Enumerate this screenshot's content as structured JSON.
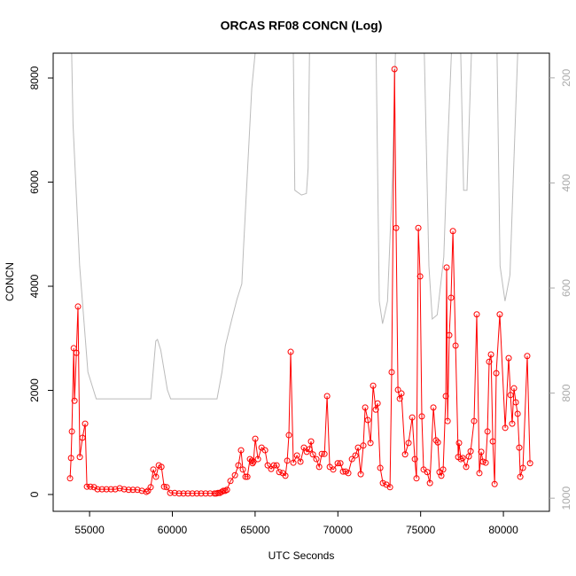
{
  "chart_data": {
    "type": "line",
    "title": "ORCAS RF08 CONCN (Log)",
    "x_label": "UTC Seconds",
    "y_label": "CONCN",
    "xlim": [
      52800,
      82780
    ],
    "xticks": [
      55000,
      60000,
      65000,
      70000,
      75000,
      80000
    ],
    "ylim": [
      -323,
      8477
    ],
    "yticks": [
      0,
      2000,
      4000,
      6000,
      8000
    ],
    "y2lim": [
      1025,
      153
    ],
    "y2ticks": [
      200,
      400,
      600,
      800,
      1000
    ],
    "series": [
      {
        "color": "#bbbbbb",
        "axis": "y2",
        "x": [
          53900,
          54000,
          54400,
          54900,
          55400,
          58700,
          59000,
          59100,
          59300,
          59700,
          59900,
          62700,
          63000,
          63200,
          63600,
          63900,
          64200,
          64300,
          64800,
          65100,
          67300,
          67400,
          67800,
          68100,
          68200,
          68300,
          72300,
          72500,
          72700,
          73000,
          73300,
          73500,
          75200,
          75500,
          75700,
          76000,
          76400,
          76600,
          76900,
          77400,
          77600,
          77800,
          78000,
          78100,
          79600,
          79800,
          80100,
          80400,
          80600,
          80900,
          81600
        ],
        "values": [
          120,
          288,
          558,
          760,
          811,
          811,
          701,
          698,
          718,
          794,
          811,
          811,
          760,
          710,
          659,
          622,
          592,
          524,
          220,
          120,
          120,
          414,
          423,
          420,
          372,
          120,
          120,
          625,
          668,
          625,
          388,
          120,
          120,
          558,
          659,
          651,
          541,
          355,
          120,
          120,
          414,
          414,
          220,
          120,
          120,
          558,
          625,
          575,
          388,
          120,
          120
        ]
      },
      {
        "color": "#ff0000",
        "markers": true,
        "x": [
          53820,
          53880,
          53930,
          54040,
          54090,
          54200,
          54300,
          54410,
          54570,
          54730,
          54840,
          55050,
          55270,
          55480,
          55750,
          56020,
          56290,
          56550,
          56820,
          57090,
          57360,
          57620,
          57890,
          58160,
          58430,
          58530,
          58690,
          58850,
          59010,
          59180,
          59340,
          59500,
          59660,
          59870,
          60140,
          60410,
          60670,
          60940,
          61210,
          61480,
          61740,
          62010,
          62280,
          62550,
          62650,
          62760,
          62870,
          62980,
          63080,
          63190,
          63300,
          63510,
          63780,
          63990,
          64150,
          64260,
          64420,
          64530,
          64690,
          64800,
          64850,
          64900,
          65010,
          65170,
          65390,
          65600,
          65760,
          65970,
          66130,
          66300,
          66460,
          66670,
          66830,
          66940,
          67040,
          67150,
          67310,
          67530,
          67740,
          67950,
          68120,
          68280,
          68380,
          68490,
          68700,
          68870,
          69030,
          69190,
          69350,
          69510,
          69720,
          69990,
          70150,
          70310,
          70470,
          70630,
          70850,
          71060,
          71220,
          71380,
          71540,
          71650,
          71810,
          71970,
          72130,
          72290,
          72400,
          72560,
          72720,
          72930,
          73150,
          73250,
          73420,
          73520,
          73630,
          73740,
          73840,
          74060,
          74270,
          74490,
          74650,
          74750,
          74860,
          74970,
          75070,
          75180,
          75400,
          75560,
          75770,
          75930,
          76040,
          76140,
          76250,
          76360,
          76520,
          76570,
          76630,
          76730,
          76840,
          76950,
          77110,
          77270,
          77320,
          77430,
          77540,
          77750,
          77910,
          78020,
          78230,
          78390,
          78550,
          78660,
          78770,
          78930,
          79040,
          79140,
          79250,
          79360,
          79470,
          79570,
          79780,
          80110,
          80320,
          80430,
          80530,
          80640,
          80750,
          80860,
          80960,
          81020,
          81180,
          81440,
          81610
        ],
        "values": [
          310,
          700,
          1210,
          2810,
          1800,
          2720,
          3610,
          720,
          1090,
          1360,
          150,
          150,
          140,
          100,
          100,
          100,
          100,
          100,
          120,
          100,
          90,
          90,
          90,
          70,
          50,
          70,
          140,
          480,
          340,
          560,
          530,
          150,
          140,
          30,
          30,
          20,
          20,
          20,
          20,
          20,
          20,
          20,
          20,
          20,
          20,
          30,
          30,
          50,
          70,
          70,
          90,
          260,
          370,
          560,
          850,
          480,
          340,
          340,
          680,
          650,
          600,
          630,
          1070,
          680,
          900,
          850,
          560,
          490,
          560,
          560,
          430,
          410,
          360,
          650,
          1140,
          2740,
          610,
          750,
          630,
          900,
          820,
          870,
          1020,
          770,
          680,
          530,
          780,
          780,
          1890,
          530,
          480,
          600,
          600,
          440,
          440,
          410,
          680,
          750,
          900,
          390,
          940,
          1670,
          1430,
          990,
          2090,
          1630,
          1750,
          510,
          220,
          190,
          140,
          2350,
          8170,
          5120,
          2010,
          1840,
          1940,
          770,
          990,
          1480,
          680,
          310,
          5120,
          4190,
          1500,
          480,
          430,
          220,
          1670,
          1040,
          1000,
          430,
          360,
          480,
          1890,
          4360,
          1410,
          3060,
          3780,
          5060,
          2860,
          720,
          990,
          680,
          700,
          530,
          730,
          830,
          1410,
          3460,
          410,
          820,
          630,
          610,
          1210,
          2550,
          2690,
          1020,
          200,
          2330,
          3460,
          1280,
          2620,
          1910,
          1360,
          2040,
          1770,
          1550,
          900,
          340,
          510,
          2660,
          600
        ]
      }
    ]
  }
}
